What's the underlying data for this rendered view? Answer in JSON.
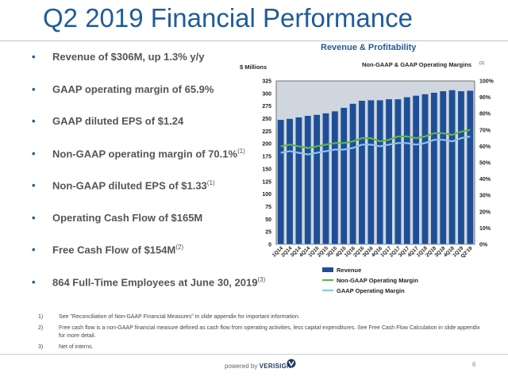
{
  "title": "Q2 2019 Financial Performance",
  "bullets": [
    {
      "text": "Revenue of $306M, up 1.3% y/y",
      "sup": ""
    },
    {
      "text": "GAAP operating margin of 65.9%",
      "sup": ""
    },
    {
      "text": "GAAP diluted EPS of $1.24",
      "sup": ""
    },
    {
      "text": "Non-GAAP operating margin of 70.1%",
      "sup": "(1)"
    },
    {
      "text": "Non-GAAP diluted EPS of $1.33",
      "sup": "(1)"
    },
    {
      "text": "Operating Cash Flow of $165M",
      "sup": ""
    },
    {
      "text": "Free Cash Flow of $154M",
      "sup": "(2)"
    },
    {
      "text": "864 Full-Time Employees at June 30, 2019",
      "sup": "(3)"
    }
  ],
  "bullet_glyph": "•",
  "chart_data": {
    "type": "bar",
    "title": "Revenue & Profitability",
    "left_axis_label": "$ Millions",
    "right_axis_label": "Non-GAAP & GAAP Operating Margins",
    "right_axis_label_sup": "(1)",
    "categories": [
      "1Q14",
      "2Q14",
      "3Q14",
      "4Q14",
      "1Q15",
      "2Q15",
      "3Q15",
      "4Q15",
      "1Q16",
      "2Q16",
      "3Q16",
      "4Q16",
      "1Q17",
      "2Q17",
      "3Q17",
      "4Q17",
      "1Q18",
      "2Q18",
      "3Q18",
      "4Q18",
      "1Q19",
      "Q2'19"
    ],
    "series": [
      {
        "name": "Revenue",
        "axis": "left",
        "kind": "bar",
        "values": [
          248,
          250,
          253,
          256,
          258,
          261,
          265,
          272,
          280,
          286,
          287,
          287,
          289,
          289,
          293,
          296,
          299,
          302,
          305,
          307,
          305,
          306
        ]
      },
      {
        "name": "Non-GAAP Operating Margin",
        "axis": "right",
        "kind": "line",
        "values": [
          60,
          61,
          60,
          59,
          60,
          61,
          62,
          62,
          63,
          65,
          65,
          63,
          64,
          66,
          66,
          65,
          66,
          68,
          68,
          67,
          69,
          70
        ]
      },
      {
        "name": "GAAP Operating Margin",
        "axis": "right",
        "kind": "line",
        "values": [
          56,
          57,
          56,
          55,
          56,
          57,
          58,
          58,
          59,
          61,
          61,
          60,
          61,
          62,
          62,
          61,
          62,
          64,
          64,
          63,
          65,
          66
        ]
      }
    ],
    "left_ticks": [
      "0",
      "25",
      "50",
      "75",
      "100",
      "125",
      "150",
      "175",
      "200",
      "225",
      "250",
      "275",
      "300",
      "325"
    ],
    "right_ticks": [
      "0%",
      "10%",
      "20%",
      "30%",
      "40%",
      "50%",
      "60%",
      "70%",
      "80%",
      "90%",
      "100%"
    ],
    "ylim_left": [
      0,
      325
    ],
    "ylim_right": [
      0,
      100
    ],
    "legend_position": "bottom",
    "grid": false,
    "colors": {
      "bar": "#1e4f96",
      "bar_edge": "#c9d4e6",
      "non_gaap": "#5fb844",
      "gaap": "#8fc4ec",
      "plot_bg": "#cfd6dd",
      "plot_border": "#555555"
    }
  },
  "footnotes": [
    {
      "num": "1)",
      "text": "See \"Reconciliation of Non-GAAP Financial Measures\" in slide appendix for important information."
    },
    {
      "num": "2)",
      "text": "Free cash flow is a non-GAAP financial measure defined as cash flow from operating activities, less capital expenditures.  See Free Cash Flow Calculation in slide appendix for more detail."
    },
    {
      "num": "3)",
      "text": "Net of interns."
    }
  ],
  "footer": {
    "powered_prefix": "powered by",
    "brand": "VERISIGN",
    "page_number": "6"
  }
}
